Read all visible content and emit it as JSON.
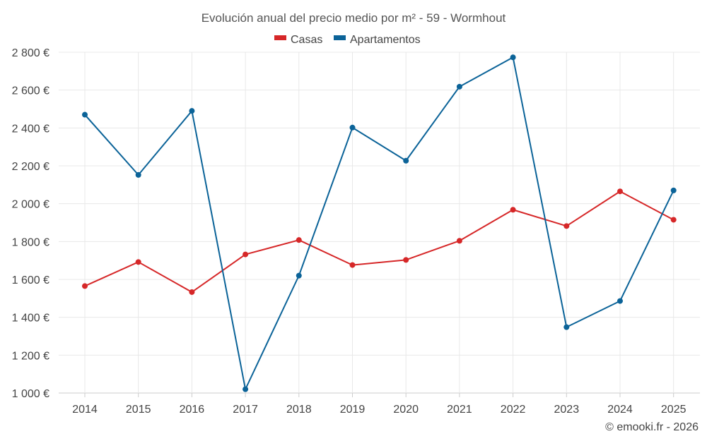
{
  "chart_data": {
    "type": "line",
    "title": "Evolución anual del precio medio por m² - 59 - Wormhout",
    "x": [
      "2014",
      "2015",
      "2016",
      "2017",
      "2018",
      "2019",
      "2020",
      "2021",
      "2022",
      "2023",
      "2024",
      "2025"
    ],
    "series": [
      {
        "name": "Casas",
        "color": "#d62728",
        "values": [
          1565,
          1692,
          1533,
          1732,
          1808,
          1676,
          1703,
          1804,
          1968,
          1882,
          2065,
          1915
        ]
      },
      {
        "name": "Apartamentos",
        "color": "#0b6398",
        "values": [
          2470,
          2152,
          2490,
          1020,
          1620,
          2402,
          2227,
          2618,
          2773,
          1348,
          1486,
          2070
        ]
      }
    ],
    "ylim": [
      1000,
      2800
    ],
    "yticks": [
      1000,
      1200,
      1400,
      1600,
      1800,
      2000,
      2200,
      2400,
      2600,
      2800
    ],
    "ytick_labels": [
      "1 000 €",
      "1 200 €",
      "1 400 €",
      "1 600 €",
      "1 800 €",
      "2 000 €",
      "2 200 €",
      "2 400 €",
      "2 600 €",
      "2 800 €"
    ],
    "grid": true,
    "legend_position": "top-center",
    "xlabel": "",
    "ylabel": ""
  },
  "credit": "© emooki.fr - 2026"
}
